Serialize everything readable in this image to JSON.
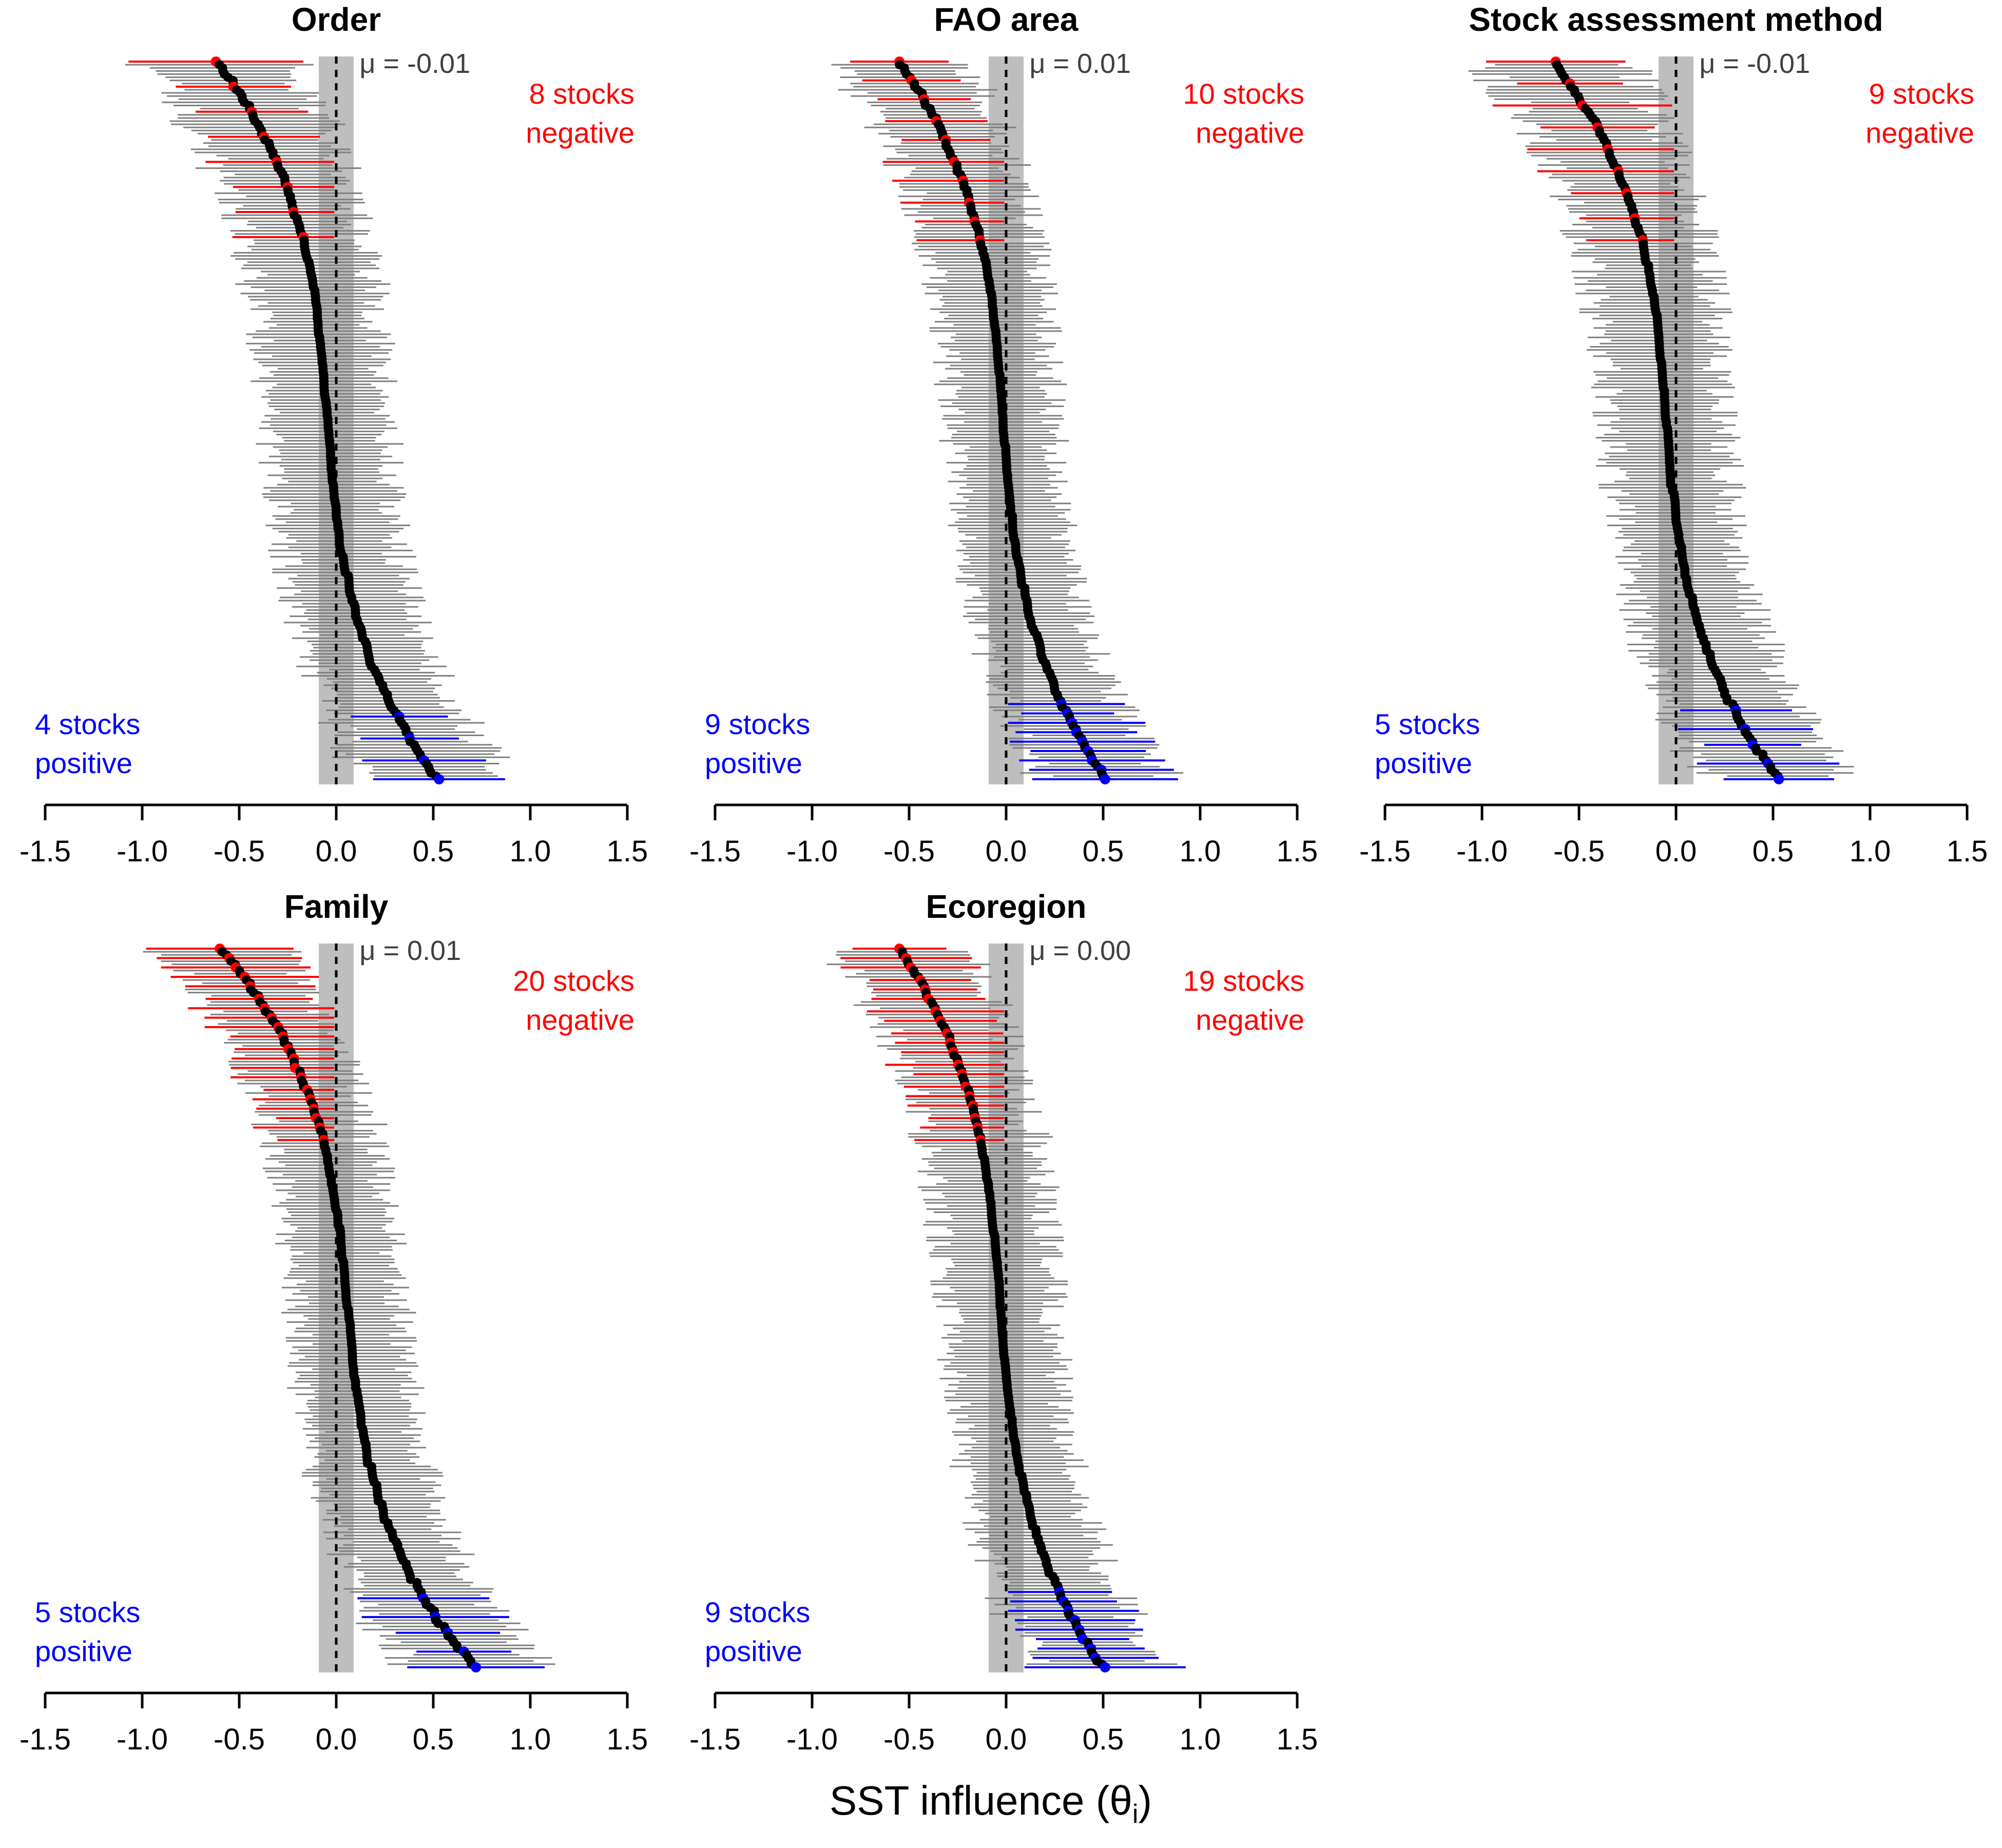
{
  "colors": {
    "negative": "#ff0000",
    "positive": "#0000ff",
    "neutral_bar": "#808080",
    "point": "#000000",
    "mean_band": "#bebebe"
  },
  "xlabel_main": "SST influence (θ",
  "xlabel_sub": "i",
  "xlabel_close": ")",
  "chart_data": [
    {
      "type": "scatter",
      "panel": "forest-plot",
      "title": "Order",
      "mean_label": "μ = -0.01",
      "mu": -0.01,
      "neg_line1": "8 stocks",
      "neg_line2": "negative",
      "pos_line1": "4 stocks",
      "pos_line2": "positive",
      "negative_count": 8,
      "positive_count": 4,
      "n_stocks": 230,
      "xlim": [
        -1.5,
        1.5
      ],
      "xticks": [
        "-1.5",
        "-1.0",
        "-0.5",
        "0.0",
        "0.5",
        "1.0",
        "1.5"
      ],
      "min_estimate": -0.62,
      "max_estimate": 0.53,
      "ci_halfwidth_mean": 0.29
    },
    {
      "type": "scatter",
      "panel": "forest-plot",
      "title": "FAO area",
      "mean_label": "μ = 0.01",
      "mu": 0.01,
      "neg_line1": "10 stocks",
      "neg_line2": "negative",
      "pos_line1": "9 stocks",
      "pos_line2": "positive",
      "negative_count": 10,
      "positive_count": 9,
      "n_stocks": 230,
      "xlim": [
        -1.5,
        1.5
      ],
      "xticks": [
        "-1.5",
        "-1.0",
        "-0.5",
        "0.0",
        "0.5",
        "1.0",
        "1.5"
      ],
      "min_estimate": -0.55,
      "max_estimate": 0.51,
      "ci_halfwidth_mean": 0.26
    },
    {
      "type": "scatter",
      "panel": "forest-plot",
      "title": "Stock assessment method",
      "mean_label": "μ = -0.01",
      "mu": -0.01,
      "neg_line1": "9 stocks",
      "neg_line2": "negative",
      "pos_line1": "5 stocks",
      "pos_line2": "positive",
      "negative_count": 9,
      "positive_count": 5,
      "n_stocks": 230,
      "xlim": [
        -1.5,
        1.5
      ],
      "xticks": [
        "-1.5",
        "-1.0",
        "-0.5",
        "0.0",
        "0.5",
        "1.0",
        "1.5"
      ],
      "min_estimate": -0.62,
      "max_estimate": 0.53,
      "ci_halfwidth_mean": 0.29
    },
    {
      "type": "scatter",
      "panel": "forest-plot",
      "title": "Family",
      "mean_label": "μ = 0.01",
      "mu": 0.01,
      "neg_line1": "20 stocks",
      "neg_line2": "negative",
      "pos_line1": "5 stocks",
      "pos_line2": "positive",
      "negative_count": 20,
      "positive_count": 5,
      "n_stocks": 230,
      "xlim": [
        -1.5,
        1.5
      ],
      "xticks": [
        "-1.5",
        "-1.0",
        "-0.5",
        "0.0",
        "0.5",
        "1.0",
        "1.5"
      ],
      "min_estimate": -0.6,
      "max_estimate": 0.72,
      "ci_halfwidth_mean": 0.26
    },
    {
      "type": "scatter",
      "panel": "forest-plot",
      "title": "Ecoregion",
      "mean_label": "μ = 0.00",
      "mu": 0.0,
      "neg_line1": "19 stocks",
      "neg_line2": "negative",
      "pos_line1": "9 stocks",
      "pos_line2": "positive",
      "negative_count": 19,
      "positive_count": 9,
      "n_stocks": 230,
      "xlim": [
        -1.5,
        1.5
      ],
      "xticks": [
        "-1.5",
        "-1.0",
        "-0.5",
        "0.0",
        "0.5",
        "1.0",
        "1.5"
      ],
      "min_estimate": -0.55,
      "max_estimate": 0.51,
      "ci_halfwidth_mean": 0.27
    }
  ]
}
